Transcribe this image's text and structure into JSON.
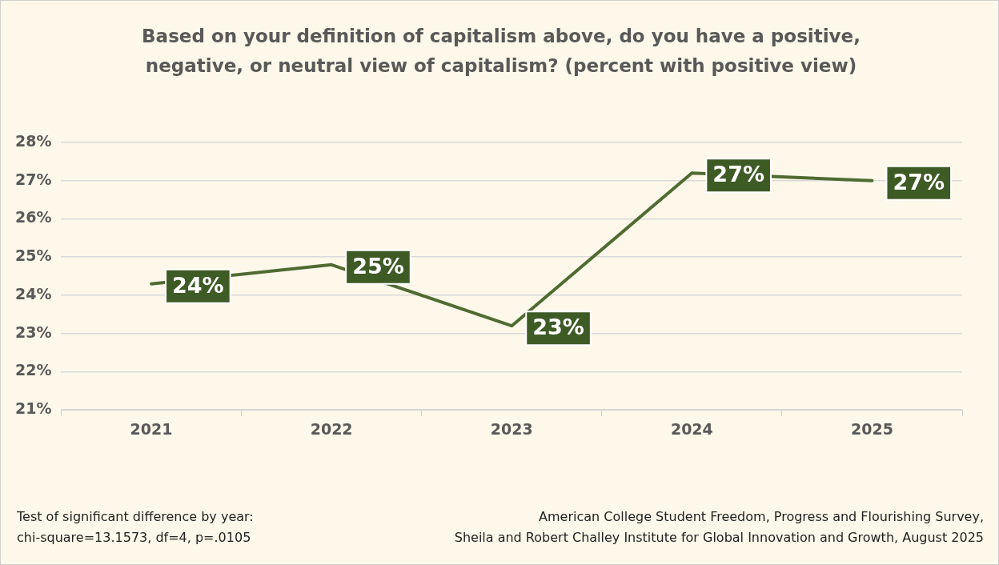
{
  "chart_data": {
    "type": "line",
    "title": "Based on your definition of capitalism above, do you have a positive, negative, or neutral view of capitalism? (percent with positive view)",
    "categories": [
      "2021",
      "2022",
      "2023",
      "2024",
      "2025"
    ],
    "series": [
      {
        "color": "#4f6b32",
        "values": [
          24.3,
          24.8,
          23.2,
          27.2,
          27.0
        ],
        "value_labels": [
          "24%",
          "25%",
          "23%",
          "27%",
          "27%"
        ]
      }
    ],
    "ylim": [
      21,
      28
    ],
    "yticks": [
      {
        "value": 21,
        "label": "21%"
      },
      {
        "value": 22,
        "label": "22%"
      },
      {
        "value": 23,
        "label": "23%"
      },
      {
        "value": 24,
        "label": "24%"
      },
      {
        "value": 25,
        "label": "25%"
      },
      {
        "value": 26,
        "label": "26%"
      },
      {
        "value": 27,
        "label": "27%"
      },
      {
        "value": 28,
        "label": "28%"
      }
    ],
    "grid": "y",
    "legend": false,
    "marker": "none",
    "line_style": "solid",
    "annotations": [
      "Test of significant difference by year:\nchi-square=13.1573, df=4, p=.0105",
      "American College Student Freedom, Progress and Flourishing Survey,\nSheila and Robert Challey Institute for Global Innovation and Growth, August 2025"
    ]
  }
}
